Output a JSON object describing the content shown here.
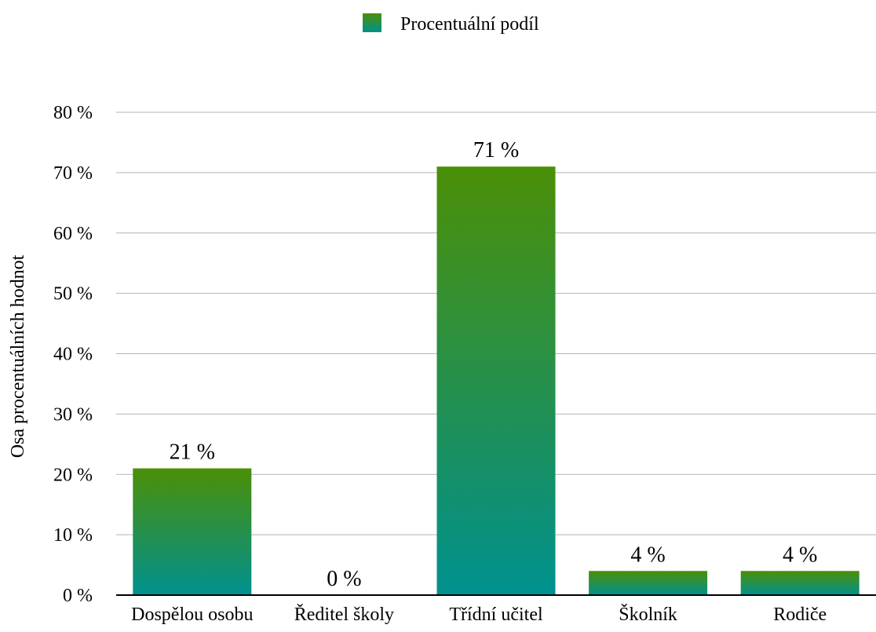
{
  "chart_data": {
    "type": "bar",
    "categories": [
      "Dospělou osobu",
      "Ředitel školy",
      "Třídní učitel",
      "Školník",
      "Rodiče"
    ],
    "series": [
      {
        "name": "Procentuální podíl",
        "values": [
          21,
          0,
          71,
          4,
          4
        ]
      }
    ],
    "data_labels": [
      "21 %",
      "0 %",
      "71 %",
      "4 %",
      "4 %"
    ],
    "y_ticks": [
      0,
      10,
      20,
      30,
      40,
      50,
      60,
      70,
      80
    ],
    "y_tick_labels": [
      "0 %",
      "10 %",
      "20 %",
      "30 %",
      "40 %",
      "50 %",
      "60 %",
      "70 %",
      "80 %"
    ],
    "ylim": [
      0,
      80
    ],
    "ylabel": "Osa procentuálních hodnot",
    "xlabel": "",
    "title": "",
    "legend_position": "top-center",
    "grid": true,
    "colors": {
      "bar_top": "#4b8f07",
      "bar_bottom": "#00918f",
      "gridline": "#b3b3b3",
      "axis": "#000000"
    }
  }
}
